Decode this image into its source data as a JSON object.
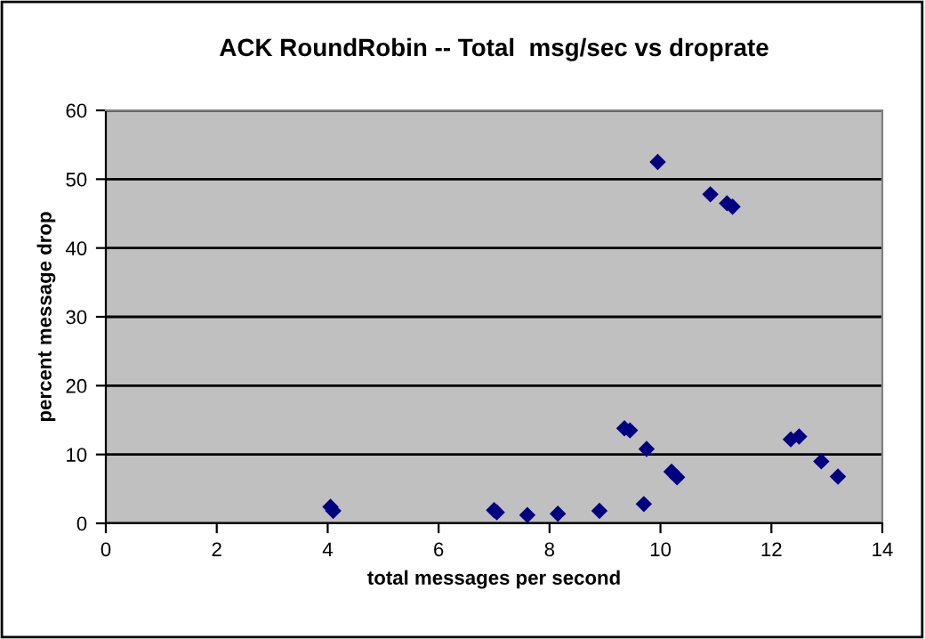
{
  "chart_data": {
    "type": "scatter",
    "title": "ACK RoundRobin -- Total  msg/sec vs droprate",
    "xlabel": "total messages per second",
    "ylabel": "percent message drop",
    "x": [
      4.05,
      4.1,
      7.0,
      7.05,
      7.6,
      8.15,
      8.9,
      9.35,
      9.45,
      9.7,
      9.75,
      10.2,
      10.3,
      9.95,
      10.9,
      11.2,
      11.3,
      12.35,
      12.5,
      12.9,
      13.2
    ],
    "series": [
      {
        "color": "#000080",
        "values": [
          2.4,
          1.8,
          1.9,
          1.6,
          1.2,
          1.4,
          1.8,
          13.8,
          13.5,
          2.8,
          10.8,
          7.5,
          6.7,
          52.5,
          47.8,
          46.5,
          46.0,
          12.2,
          12.6,
          9.0,
          6.8
        ]
      }
    ],
    "xlim": [
      0,
      14
    ],
    "ylim": [
      0,
      60
    ],
    "xticks": [
      0,
      2,
      4,
      6,
      8,
      10,
      12,
      14
    ],
    "yticks": [
      0,
      10,
      20,
      30,
      40,
      50,
      60
    ],
    "grid": "y",
    "marker": "diamond",
    "legend": false
  }
}
